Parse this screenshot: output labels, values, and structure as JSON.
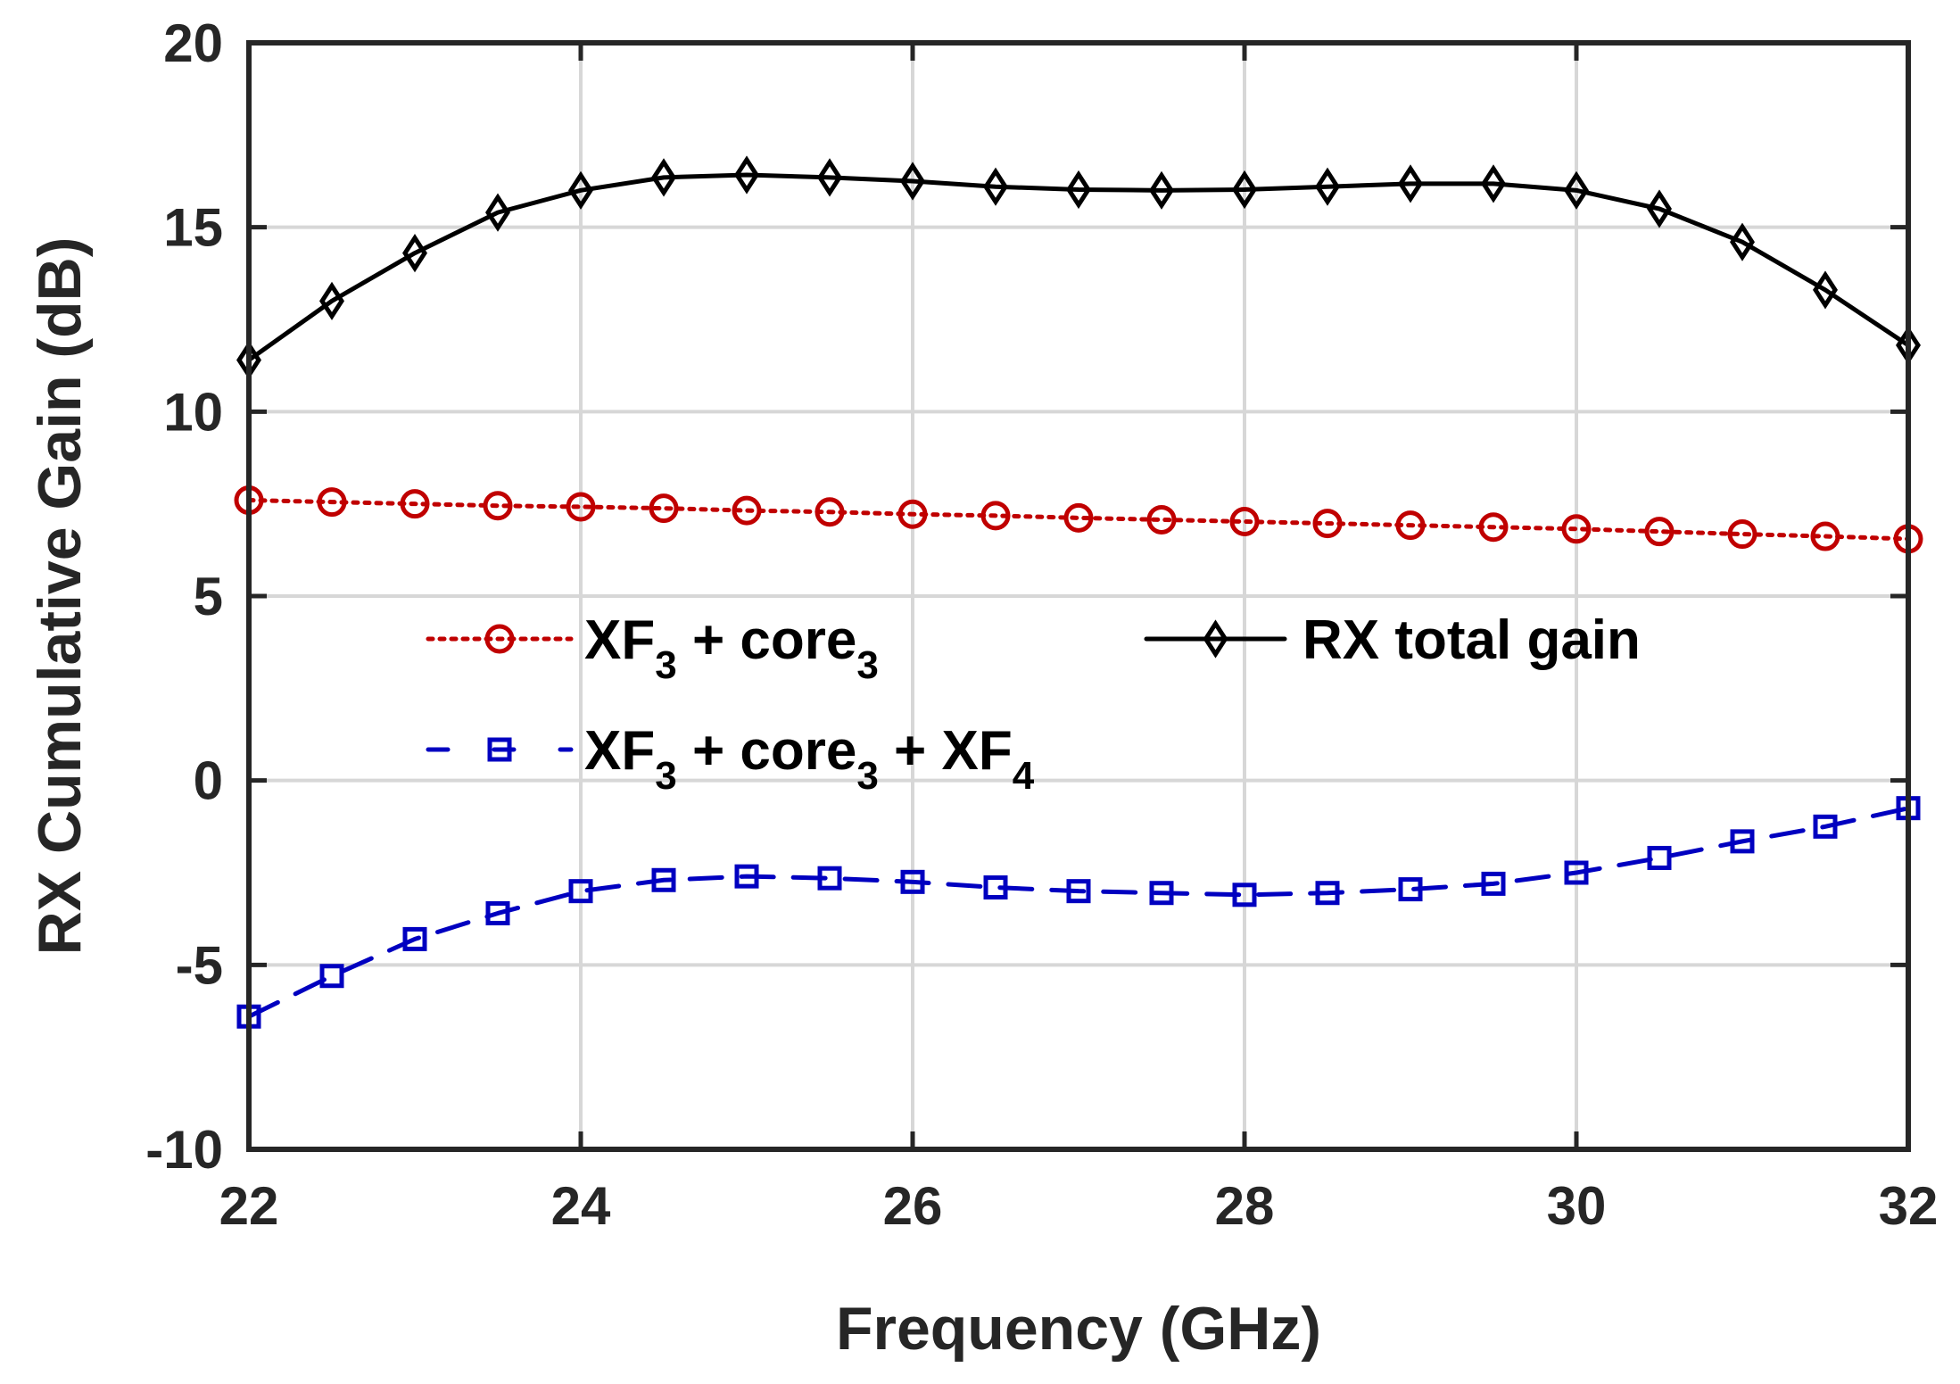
{
  "chart_data": {
    "type": "line",
    "title": "",
    "xlabel": "Frequency (GHz)",
    "ylabel": "RX Cumulative Gain (dB)",
    "xlim": [
      22,
      32
    ],
    "ylim": [
      -10,
      20
    ],
    "grid": true,
    "legend_placement": "center-left",
    "x_ticks": [
      22,
      24,
      26,
      28,
      30,
      32
    ],
    "x_tick_labels": [
      "22",
      "24",
      "26",
      "28",
      "30",
      "32"
    ],
    "y_ticks": [
      -10,
      -5,
      0,
      5,
      10,
      15,
      20
    ],
    "y_tick_labels": [
      "-10",
      "-5",
      "0",
      "5",
      "10",
      "15",
      "20"
    ],
    "x": [
      22,
      22.5,
      23,
      23.5,
      24,
      24.5,
      25,
      25.5,
      26,
      26.5,
      27,
      27.5,
      28,
      28.5,
      29,
      29.5,
      30,
      30.5,
      31,
      31.5,
      32
    ],
    "series": [
      {
        "name": "XF3 + core3",
        "legend": {
          "parts": [
            "XF",
            "3",
            " + core",
            "3"
          ]
        },
        "color": "#c00000",
        "line_style": "dotted",
        "marker": "circle",
        "values": [
          7.6,
          7.55,
          7.5,
          7.45,
          7.42,
          7.38,
          7.32,
          7.28,
          7.22,
          7.18,
          7.12,
          7.07,
          7.02,
          6.97,
          6.92,
          6.87,
          6.82,
          6.75,
          6.68,
          6.62,
          6.55
        ]
      },
      {
        "name": "XF3 + core3 + XF4",
        "legend": {
          "parts": [
            "XF",
            "3",
            " + core",
            "3",
            " + XF",
            "4"
          ]
        },
        "color": "#0000c0",
        "line_style": "dashed",
        "marker": "square",
        "values": [
          -6.4,
          -5.3,
          -4.3,
          -3.6,
          -3.0,
          -2.7,
          -2.6,
          -2.65,
          -2.75,
          -2.9,
          -3.0,
          -3.05,
          -3.1,
          -3.05,
          -2.95,
          -2.8,
          -2.5,
          -2.1,
          -1.65,
          -1.25,
          -0.75
        ]
      },
      {
        "name": "RX total gain",
        "legend": {
          "parts": [
            "RX total gain"
          ]
        },
        "color": "#000000",
        "line_style": "solid",
        "marker": "diamond",
        "values": [
          11.4,
          13.0,
          14.3,
          15.4,
          16.0,
          16.35,
          16.42,
          16.35,
          16.25,
          16.1,
          16.02,
          16.0,
          16.02,
          16.1,
          16.18,
          16.18,
          16.0,
          15.5,
          14.6,
          13.3,
          11.8
        ]
      }
    ]
  }
}
